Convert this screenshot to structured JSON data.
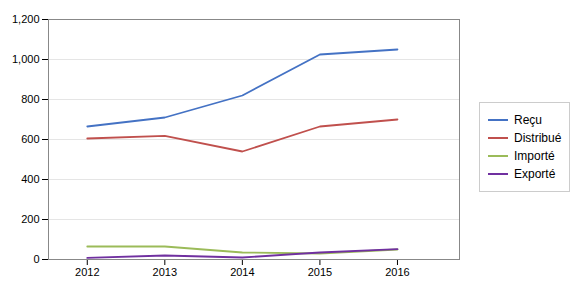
{
  "chart_data": {
    "type": "line",
    "x": [
      2012,
      2013,
      2014,
      2015,
      2016
    ],
    "series": [
      {
        "name": "Reçu",
        "color": "#4472C4",
        "values": [
          665,
          710,
          820,
          1025,
          1050
        ]
      },
      {
        "name": "Distribué",
        "color": "#C0504D",
        "values": [
          605,
          618,
          540,
          665,
          700
        ]
      },
      {
        "name": "Importé",
        "color": "#9BBB59",
        "values": [
          65,
          65,
          35,
          30,
          50
        ]
      },
      {
        "name": "Exporté",
        "color": "#7030A0",
        "values": [
          8,
          20,
          10,
          35,
          52
        ]
      }
    ],
    "xlim": [
      2011.5,
      2016.8
    ],
    "xticks": [
      2012,
      2013,
      2014,
      2015,
      2016
    ],
    "ylim": [
      0,
      1200
    ],
    "yticks": [
      0,
      200,
      400,
      600,
      800,
      1000,
      1200
    ],
    "grid": "y",
    "legend": "right"
  }
}
